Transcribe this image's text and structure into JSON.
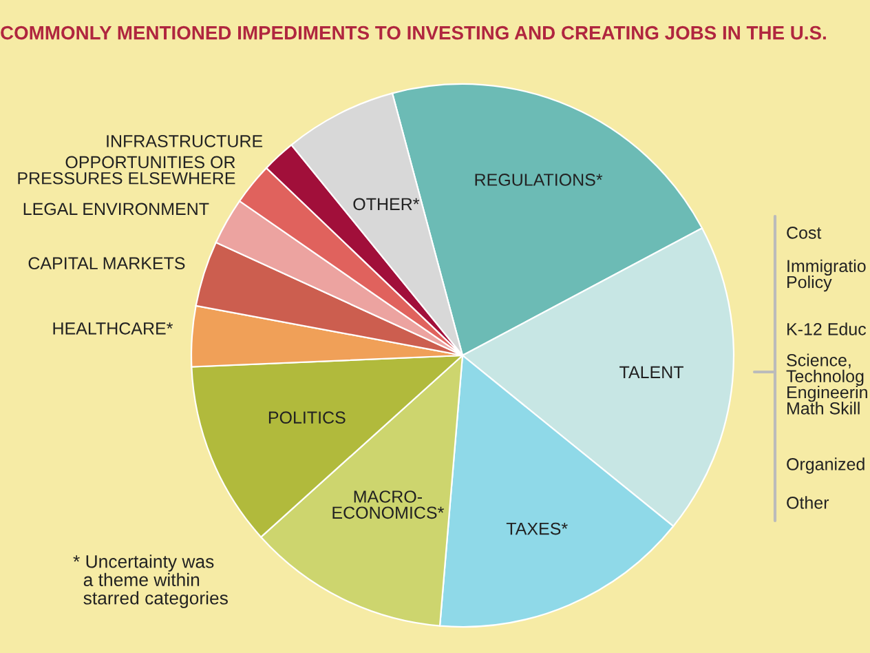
{
  "chart_data": {
    "type": "pie",
    "title": "COMMONLY MENTIONED IMPEDIMENTS TO INVESTING AND CREATING JOBS IN THE U.S.",
    "categories": [
      "REGULATIONS*",
      "TALENT",
      "TAXES*",
      "MACRO-\nECONOMICS*",
      "POLITICS",
      "HEALTHCARE*",
      "CAPITAL MARKETS",
      "LEGAL ENVIRONMENT",
      "OPPORTUNITIES OR\nPRESSURES ELSEWHERE",
      "INFRASTRUCTURE",
      "OTHER*"
    ],
    "values": [
      21.4,
      18.6,
      15.5,
      12,
      11,
      3.6,
      3.9,
      2.8,
      2.5,
      2,
      6.7
    ],
    "colors": [
      "#6cbbb5",
      "#c7e6e4",
      "#8fd9e8",
      "#cdd56e",
      "#b1ba3c",
      "#f0a058",
      "#cc5e4f",
      "#eca3a0",
      "#e0625d",
      "#a10f3a",
      "#d8d8d8"
    ],
    "annotations": [
      "Cost",
      "Immigratio\nPolicy",
      "K-12 Educ",
      "Science,\nTechnolog\nEngineerin\nMath Skill",
      "Organized",
      "Other",
      "* Uncertainty was\n  a theme within\n  starred categories"
    ]
  }
}
